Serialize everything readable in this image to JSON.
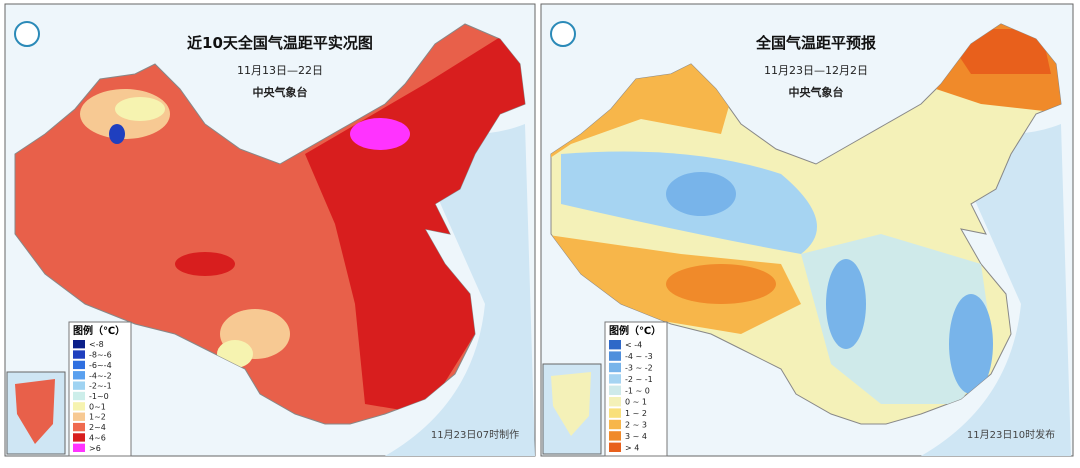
{
  "panels": [
    {
      "title": "近10天全国气温距平实况图",
      "date_range": "11月13日—22日",
      "issuer": "中央气象台",
      "legend_title": "图例（℃）",
      "legend": [
        {
          "label": "<-8",
          "color": "#0b1f8a"
        },
        {
          "label": "-8~-6",
          "color": "#1f3fbf"
        },
        {
          "label": "-6~-4",
          "color": "#2f6fe0"
        },
        {
          "label": "-4~-2",
          "color": "#5aa0ef"
        },
        {
          "label": "-2~-1",
          "color": "#9fd3f2"
        },
        {
          "label": "-1~0",
          "color": "#cdeeea"
        },
        {
          "label": "0~1",
          "color": "#f6f3b0"
        },
        {
          "label": "1~2",
          "color": "#f7c993"
        },
        {
          "label": "2~4",
          "color": "#ef6a4f"
        },
        {
          "label": "4~6",
          "color": "#d81e1e"
        },
        {
          "label": ">6",
          "color": "#ff33ff"
        }
      ],
      "footer": "11月23日07时制作"
    },
    {
      "title": "全国气温距平预报",
      "date_range": "11月23日—12月2日",
      "issuer": "中央气象台",
      "legend_title": "图例（℃）",
      "legend": [
        {
          "label": "< -4",
          "color": "#2f68c8"
        },
        {
          "label": "-4 ~ -3",
          "color": "#4f8fdc"
        },
        {
          "label": "-3 ~ -2",
          "color": "#78b4ea"
        },
        {
          "label": "-2 ~ -1",
          "color": "#a6d4f2"
        },
        {
          "label": "-1 ~ 0",
          "color": "#cfeaea"
        },
        {
          "label": "0 ~ 1",
          "color": "#f4f1b8"
        },
        {
          "label": "1 ~ 2",
          "color": "#f9e07a"
        },
        {
          "label": "2 ~ 3",
          "color": "#f7b64a"
        },
        {
          "label": "3 ~ 4",
          "color": "#f08a2a"
        },
        {
          "label": "> 4",
          "color": "#e8601c"
        }
      ],
      "footer": "11月23日10时发布"
    }
  ]
}
